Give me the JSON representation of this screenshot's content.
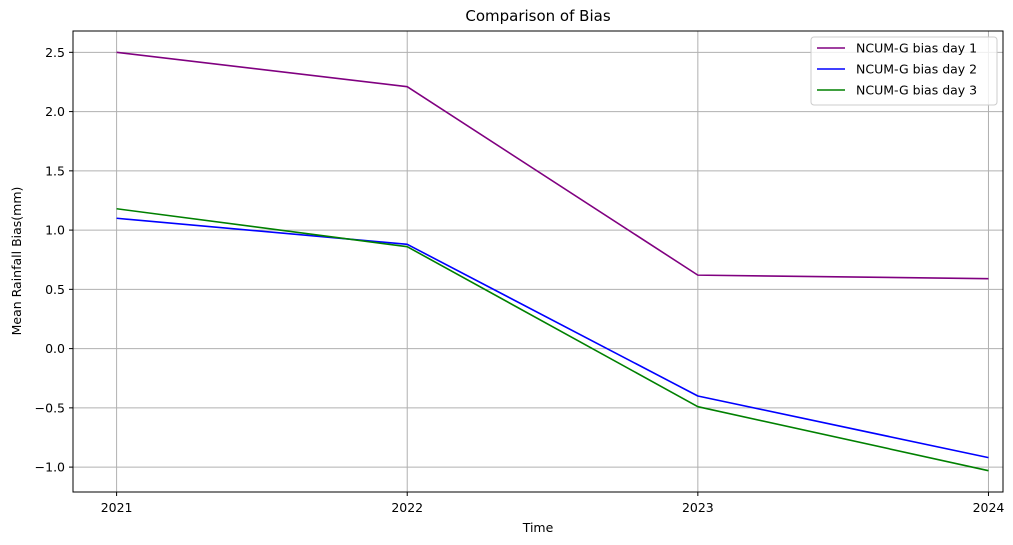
{
  "chart_data": {
    "type": "line",
    "title": "Comparison of Bias",
    "xlabel": "Time",
    "ylabel": "Mean Rainfall Bias(mm)",
    "x": [
      2021,
      2022,
      2023,
      2024
    ],
    "x_tick_labels": [
      "2021",
      "2022",
      "2023",
      "2024"
    ],
    "xlim": [
      2020.85,
      2024.05
    ],
    "ylim": [
      -1.21,
      2.68
    ],
    "y_ticks": [
      2.5,
      2.0,
      1.5,
      1.0,
      0.5,
      0.0,
      -0.5,
      -1.0
    ],
    "y_tick_labels": [
      "2.5",
      "2.0",
      "1.5",
      "1.0",
      "0.5",
      "0.0",
      "−0.5",
      "−1.0"
    ],
    "grid": true,
    "legend_position": "top-right",
    "series": [
      {
        "name": "NCUM-G bias day 1",
        "color": "#800080",
        "values": [
          2.5,
          2.21,
          0.62,
          0.59
        ]
      },
      {
        "name": "NCUM-G bias day 2",
        "color": "#0000ff",
        "values": [
          1.1,
          0.88,
          -0.4,
          -0.92
        ]
      },
      {
        "name": "NCUM-G bias day 3",
        "color": "#008000",
        "values": [
          1.18,
          0.86,
          -0.49,
          -1.03
        ]
      }
    ]
  }
}
